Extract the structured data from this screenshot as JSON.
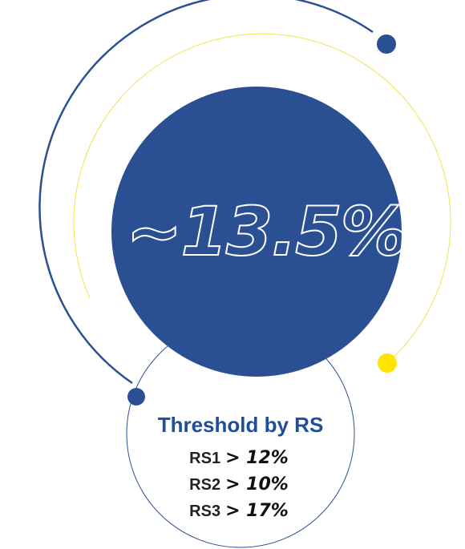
{
  "headline": "~13.5%",
  "threshold": {
    "title": "Threshold by RS",
    "items": [
      {
        "label": "RS1",
        "value": "> 12%"
      },
      {
        "label": "RS2",
        "value": "> 10%"
      },
      {
        "label": "RS3",
        "value": "> 17%"
      }
    ]
  }
}
